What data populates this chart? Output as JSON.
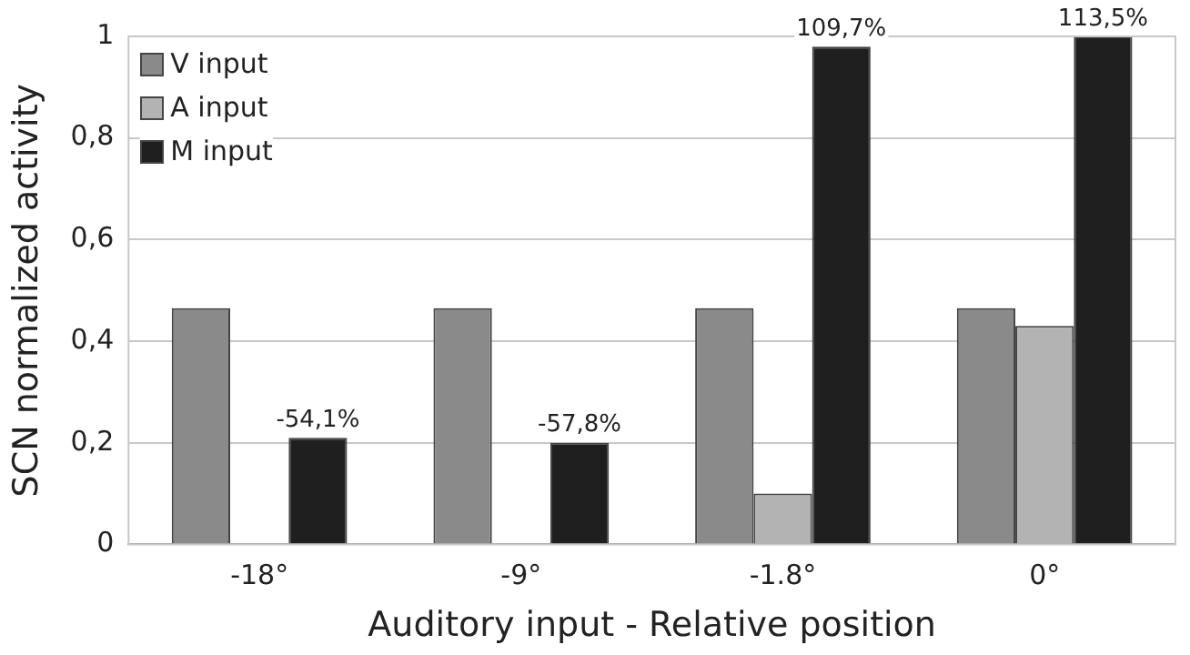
{
  "chart_data": {
    "type": "bar",
    "xlabel": "Auditory input - Relative position",
    "ylabel": "SCN normalized activity",
    "categories": [
      "-18°",
      "-9°",
      "-1.8°",
      "0°"
    ],
    "series": [
      {
        "name": "V input",
        "color": "#8a8a8a",
        "values": [
          0.465,
          0.465,
          0.465,
          0.465
        ]
      },
      {
        "name": "A input",
        "color": "#b3b3b3",
        "values": [
          0,
          0,
          0.1,
          0.43
        ]
      },
      {
        "name": "M input",
        "color": "#1f1f1f",
        "values": [
          0.21,
          0.2,
          0.98,
          1.0
        ]
      }
    ],
    "ylim": [
      0,
      1
    ],
    "yticks": [
      {
        "value": 0,
        "label": "0"
      },
      {
        "value": 0.2,
        "label": "0,2"
      },
      {
        "value": 0.4,
        "label": "0,4"
      },
      {
        "value": 0.6,
        "label": "0,6"
      },
      {
        "value": 0.8,
        "label": "0,8"
      },
      {
        "value": 1,
        "label": "1"
      }
    ],
    "grid": "y",
    "legend": "top left",
    "annotations": [
      "-54,1%",
      "-57,8%",
      "109,7%",
      "113,5%"
    ]
  }
}
